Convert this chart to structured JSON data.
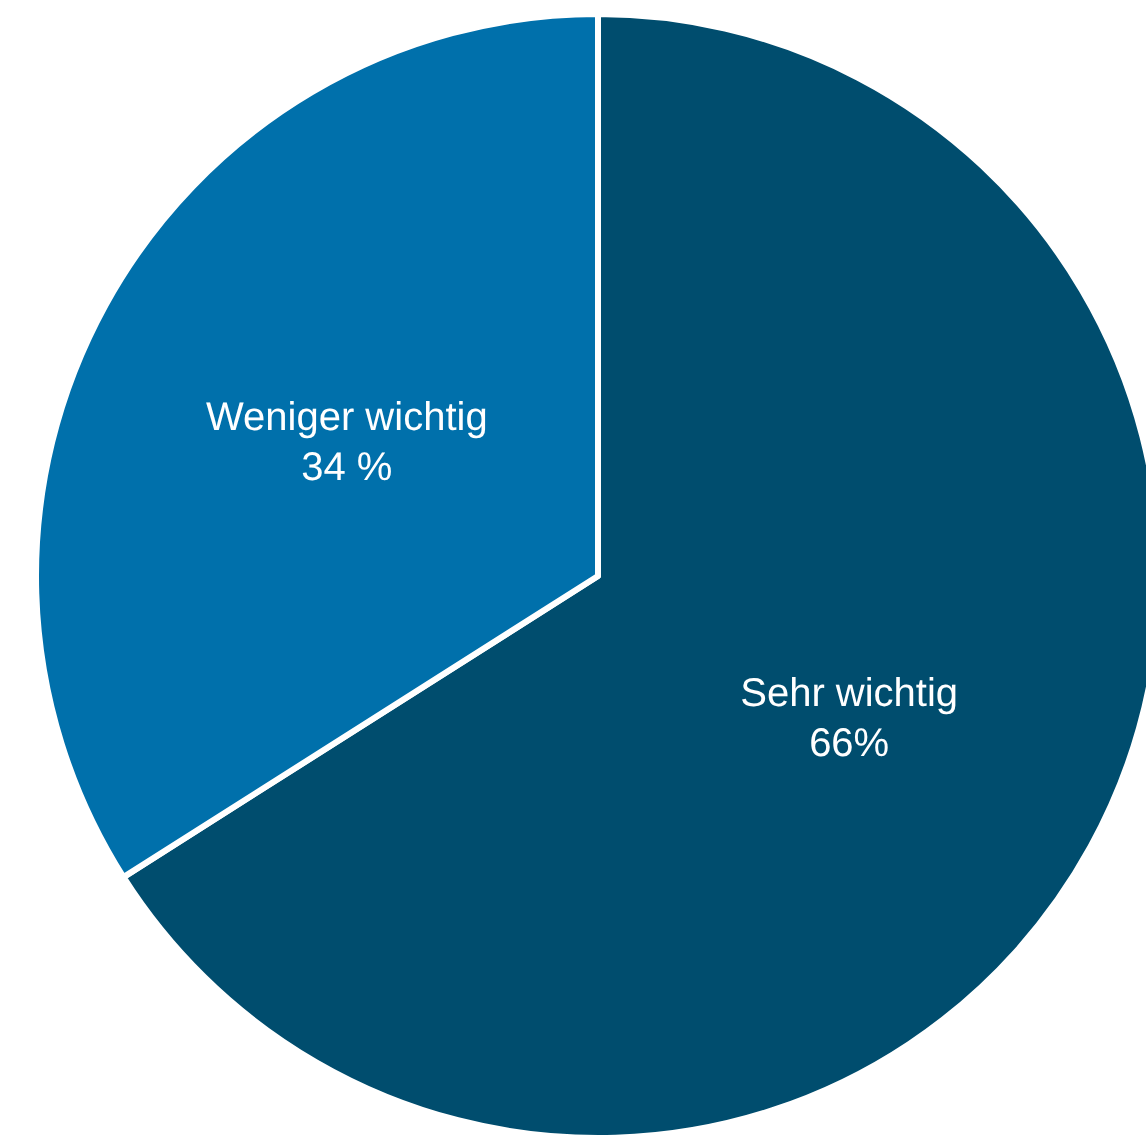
{
  "chart_data": {
    "type": "pie",
    "categories": [
      "Sehr wichtig",
      "Weniger wichtig"
    ],
    "values": [
      66,
      34
    ],
    "value_labels": [
      "66%",
      "34 %"
    ],
    "colors": [
      "#004d6e",
      "#0070ab"
    ]
  }
}
